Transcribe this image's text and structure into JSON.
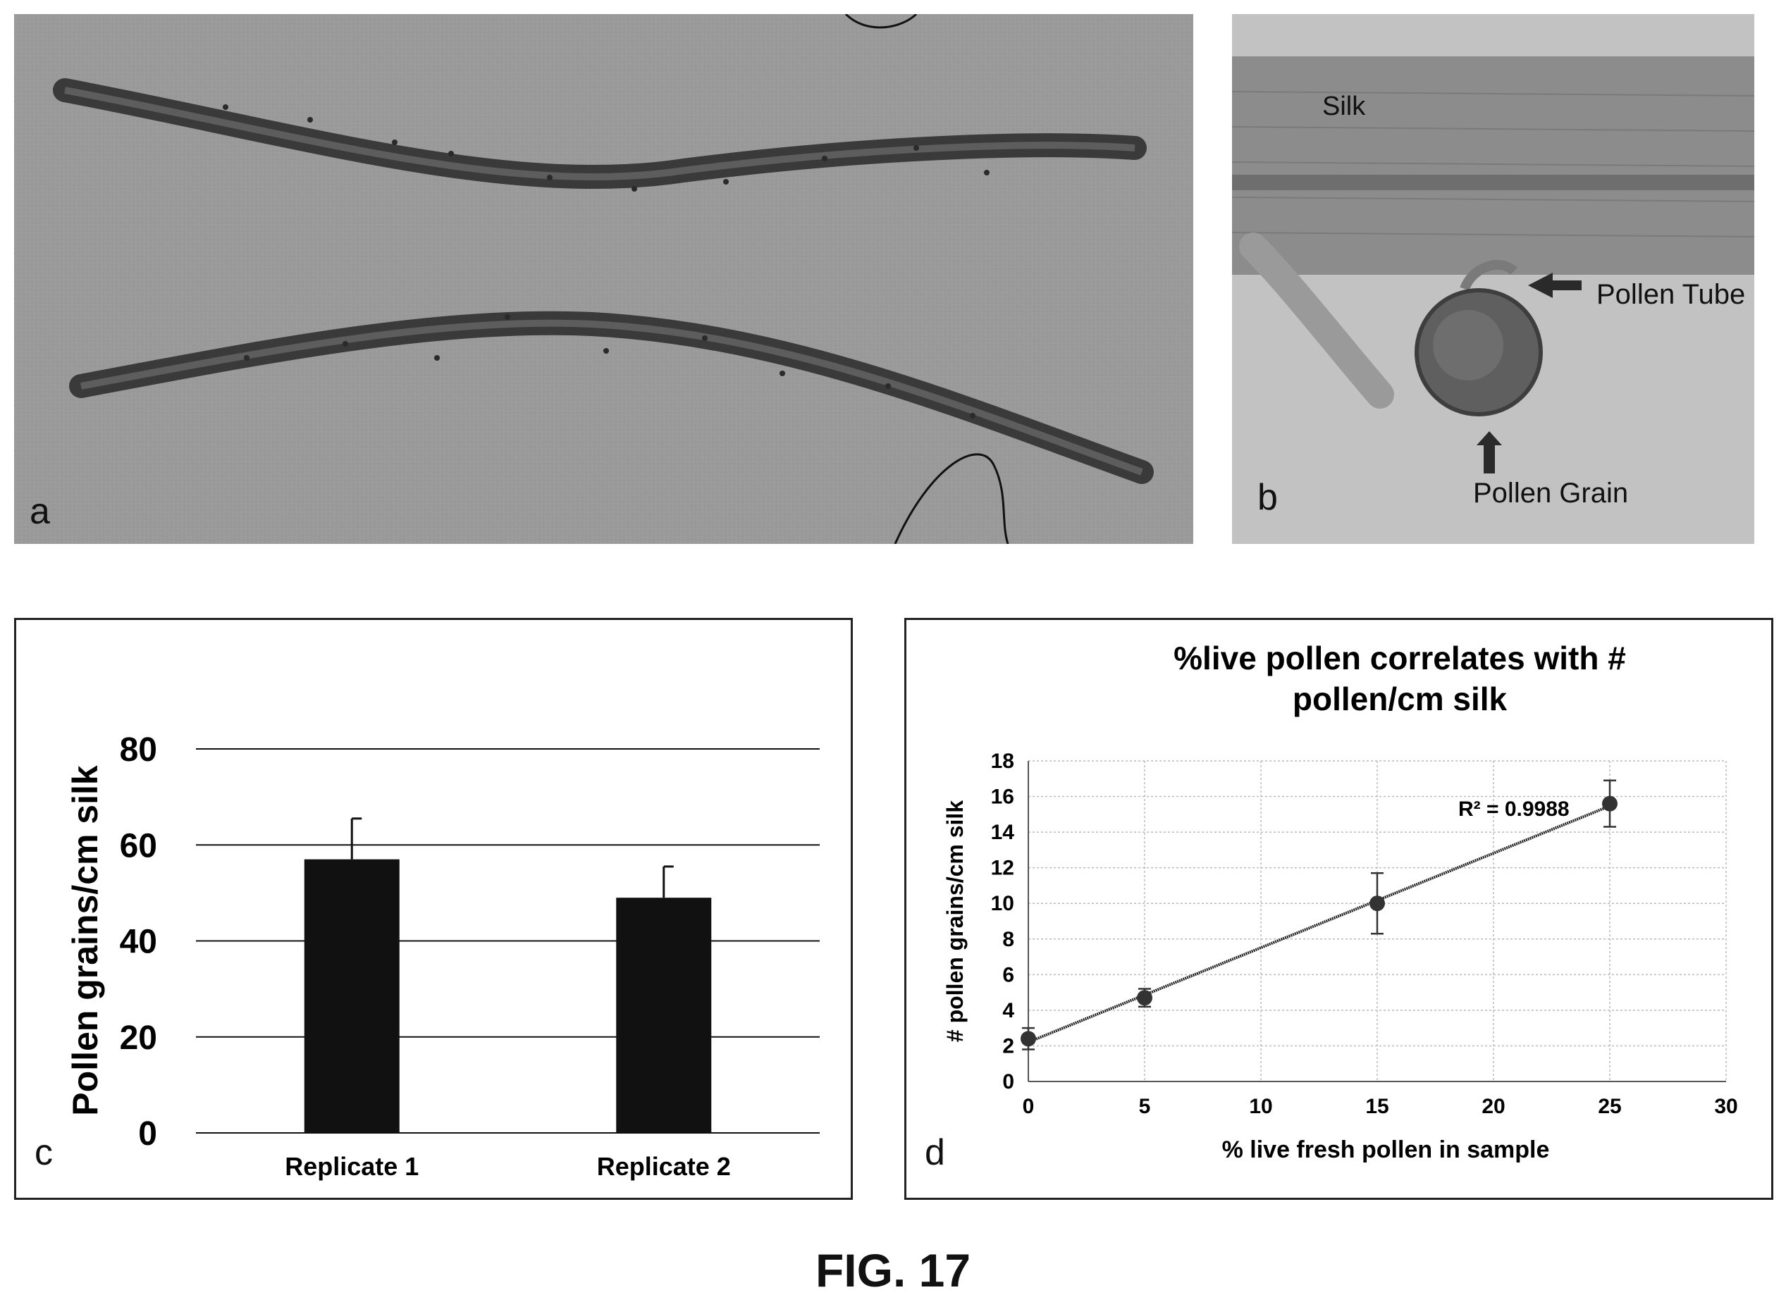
{
  "panels": {
    "a": {
      "letter": "a"
    },
    "b": {
      "letter": "b",
      "labels": {
        "silk": "Silk",
        "pollen_tube": "Pollen Tube",
        "pollen_grain": "Pollen Grain"
      }
    },
    "c": {
      "letter": "c"
    },
    "d": {
      "letter": "d",
      "r_squared_label": "R² = 0.9988"
    }
  },
  "caption": "FIG. 17",
  "chart_data": [
    {
      "panel": "c",
      "type": "bar",
      "title": "",
      "xlabel": "",
      "ylabel": "Pollen grains/cm silk",
      "categories": [
        "Replicate 1",
        "Replicate 2"
      ],
      "values": [
        57,
        49
      ],
      "error": [
        8.5,
        6.5
      ],
      "ylim": [
        0,
        80
      ],
      "yticks": [
        0,
        20,
        40,
        60,
        80
      ],
      "grid": true,
      "bar_color": "#111111"
    },
    {
      "panel": "d",
      "type": "scatter",
      "title": "%live pollen correlates with # pollen/cm silk",
      "xlabel": "% live fresh pollen in sample",
      "ylabel": "# pollen grains/cm silk",
      "x": [
        0,
        5,
        15,
        25
      ],
      "y": [
        2.4,
        4.7,
        10.0,
        15.6
      ],
      "error": [
        0.6,
        0.5,
        1.7,
        1.3
      ],
      "xlim": [
        0,
        30
      ],
      "ylim": [
        0,
        18
      ],
      "xticks": [
        0,
        5,
        10,
        15,
        20,
        25,
        30
      ],
      "yticks": [
        0,
        2,
        4,
        6,
        8,
        10,
        12,
        14,
        16,
        18
      ],
      "trendline": "linear",
      "grid": true,
      "marker_color": "#333333"
    }
  ]
}
